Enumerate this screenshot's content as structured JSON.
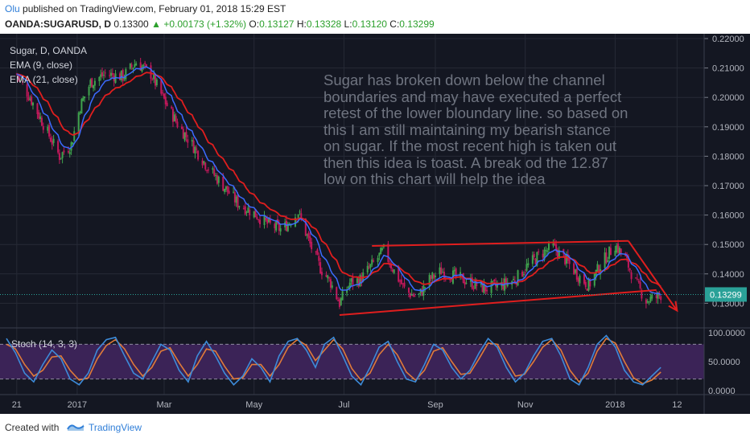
{
  "header": {
    "author": "Olu",
    "published_text": "published on TradingView.com, February 01, 2018 15:29 EST",
    "symbol": "OANDA:SUGARUSD, D",
    "last": "0.13300",
    "change": "+0.00173 (+1.32%)",
    "o_label": "O:",
    "o_value": "0.13127",
    "h_label": "H:",
    "h_value": "0.13328",
    "l_label": "L:",
    "l_value": "0.13120",
    "c_label": "C:",
    "c_value": "0.13299"
  },
  "legend": {
    "title": "Sugar, D, OANDA",
    "ema9": "EMA (9, close)",
    "ema21": "EMA (21, close)",
    "stoch": "Stoch (14, 3, 3)"
  },
  "annotation": "Sugar has  broken down below the channel boundaries and may have executed a perfect retest of the lower bloundary line. so based on this I am still maintaining my bearish stance on sugar. If the most recent high is taken out then this idea is toast. A break od the 12.87 low on this chart will help the idea",
  "footer": {
    "created": "Created with",
    "brand": "TradingView"
  },
  "colors": {
    "background": "#141722",
    "grid": "#262a36",
    "up_candle": "#3fa34d",
    "down_candle": "#c2185b",
    "ema9": "#3c6bff",
    "ema21": "#e01e1e",
    "trendline": "#e01e1e",
    "stoch_k": "#3d8bd9",
    "stoch_d": "#e07b39",
    "stoch_band": "#3b2357",
    "last_price_tag": "#2aa198",
    "annotation_text": "#6f7480",
    "axis_text": "#b2b5be"
  },
  "chart_data": {
    "type": "candlestick",
    "price_axis": {
      "ticks": [
        "0.22000",
        "0.21000",
        "0.20000",
        "0.19000",
        "0.18000",
        "0.17000",
        "0.16000",
        "0.15000",
        "0.14000",
        "0.13000"
      ],
      "last_price": "0.13299",
      "range": [
        0.126,
        0.222
      ]
    },
    "time_axis": {
      "ticks": [
        "21",
        "2017",
        "Mar",
        "May",
        "Jul",
        "Sep",
        "Nov",
        "2018",
        "12"
      ]
    },
    "close_path": [
      [
        "2016-11-21",
        0.208
      ],
      [
        "2016-12-01",
        0.199
      ],
      [
        "2016-12-10",
        0.19
      ],
      [
        "2016-12-20",
        0.18
      ],
      [
        "2016-12-28",
        0.184
      ],
      [
        "2017-01-03",
        0.197
      ],
      [
        "2017-01-10",
        0.205
      ],
      [
        "2017-01-20",
        0.208
      ],
      [
        "2017-02-01",
        0.207
      ],
      [
        "2017-02-10",
        0.212
      ],
      [
        "2017-02-20",
        0.208
      ],
      [
        "2017-02-28",
        0.2
      ],
      [
        "2017-03-10",
        0.191
      ],
      [
        "2017-03-20",
        0.184
      ],
      [
        "2017-03-31",
        0.176
      ],
      [
        "2017-04-10",
        0.17
      ],
      [
        "2017-04-20",
        0.164
      ],
      [
        "2017-04-30",
        0.161
      ],
      [
        "2017-05-10",
        0.157
      ],
      [
        "2017-05-20",
        0.155
      ],
      [
        "2017-05-31",
        0.161
      ],
      [
        "2017-06-08",
        0.15
      ],
      [
        "2017-06-15",
        0.142
      ],
      [
        "2017-06-22",
        0.137
      ],
      [
        "2017-06-28",
        0.13
      ],
      [
        "2017-07-05",
        0.137
      ],
      [
        "2017-07-12",
        0.138
      ],
      [
        "2017-07-20",
        0.143
      ],
      [
        "2017-07-28",
        0.148
      ],
      [
        "2017-08-04",
        0.141
      ],
      [
        "2017-08-12",
        0.134
      ],
      [
        "2017-08-20",
        0.132
      ],
      [
        "2017-08-28",
        0.138
      ],
      [
        "2017-09-05",
        0.141
      ],
      [
        "2017-09-15",
        0.139
      ],
      [
        "2017-09-25",
        0.137
      ],
      [
        "2017-10-05",
        0.135
      ],
      [
        "2017-10-15",
        0.136
      ],
      [
        "2017-10-25",
        0.138
      ],
      [
        "2017-11-03",
        0.143
      ],
      [
        "2017-11-12",
        0.147
      ],
      [
        "2017-11-20",
        0.149
      ],
      [
        "2017-11-28",
        0.145
      ],
      [
        "2017-12-06",
        0.14
      ],
      [
        "2017-12-14",
        0.136
      ],
      [
        "2017-12-22",
        0.143
      ],
      [
        "2018-01-01",
        0.15
      ],
      [
        "2018-01-08",
        0.145
      ],
      [
        "2018-01-15",
        0.137
      ],
      [
        "2018-01-22",
        0.131
      ],
      [
        "2018-01-29",
        0.132
      ],
      [
        "2018-02-01",
        0.133
      ]
    ],
    "trendlines": [
      {
        "from": [
          "2017-06-28",
          0.126
        ],
        "to": [
          "2018-01-29",
          0.1345
        ]
      },
      {
        "from": [
          "2017-07-20",
          0.1495
        ],
        "to": [
          "2018-01-10",
          0.1512
        ]
      },
      {
        "from": [
          "2018-01-10",
          0.1512
        ],
        "to": [
          "2018-02-12",
          0.1275
        ],
        "arrow": true
      }
    ],
    "stoch_axis": {
      "ticks": [
        "100.0000",
        "50.0000",
        "0.0000"
      ],
      "bands": [
        80,
        20
      ]
    },
    "stoch_k": [
      90,
      65,
      30,
      15,
      45,
      70,
      55,
      20,
      10,
      30,
      70,
      88,
      92,
      60,
      30,
      20,
      50,
      80,
      70,
      35,
      15,
      60,
      85,
      60,
      30,
      10,
      25,
      55,
      40,
      15,
      60,
      85,
      90,
      70,
      40,
      80,
      92,
      60,
      25,
      10,
      40,
      75,
      85,
      50,
      20,
      15,
      45,
      80,
      70,
      40,
      20,
      35,
      65,
      90,
      75,
      40,
      15,
      30,
      60,
      85,
      90,
      60,
      20,
      10,
      40,
      80,
      95,
      75,
      35,
      15,
      10,
      25,
      40
    ],
    "stoch_d": [
      80,
      72,
      45,
      25,
      35,
      58,
      60,
      35,
      18,
      22,
      55,
      78,
      88,
      72,
      45,
      25,
      40,
      68,
      74,
      48,
      25,
      45,
      72,
      68,
      42,
      20,
      22,
      45,
      45,
      25,
      45,
      75,
      88,
      78,
      52,
      70,
      88,
      72,
      38,
      18,
      30,
      62,
      80,
      62,
      32,
      18,
      35,
      68,
      74,
      50,
      28,
      30,
      55,
      82,
      80,
      52,
      25,
      28,
      50,
      75,
      88,
      70,
      35,
      15,
      30,
      68,
      90,
      82,
      50,
      22,
      12,
      18,
      32
    ]
  }
}
